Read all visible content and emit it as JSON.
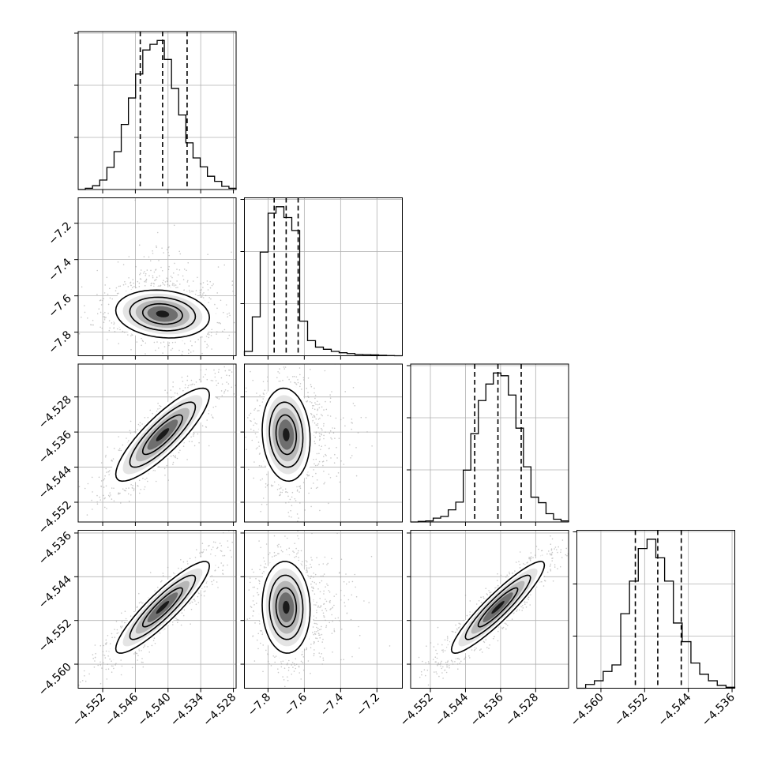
{
  "chart_data": {
    "type": "corner",
    "grid": true,
    "n_params": 4,
    "params": [
      {
        "range": [
          -4.5565,
          -4.5275
        ],
        "ticks": [
          -4.552,
          -4.546,
          -4.54,
          -4.534,
          -4.528
        ],
        "tick_labels": [
          "−4.552",
          "−4.546",
          "−4.540",
          "−4.534",
          "−4.528"
        ],
        "median": -4.541,
        "quantiles": [
          -4.5451,
          -4.541,
          -4.5365
        ],
        "histogram": [
          0,
          0.2,
          0.6,
          1.5,
          3.5,
          6.0,
          10.3,
          14.5,
          18.3,
          22.1,
          23.0,
          23.6,
          20.6,
          16.0,
          11.8,
          7.4,
          5.0,
          3.6,
          2.1,
          1.3,
          0.5,
          0.2
        ],
        "axis_tick_labels_hidden": true
      },
      {
        "range": [
          -7.93,
          -7.06
        ],
        "ticks": [
          -7.8,
          -7.6,
          -7.4,
          -7.2
        ],
        "tick_labels": [
          "−7.8",
          "−7.6",
          "−7.4",
          "−7.2"
        ],
        "median": -7.7,
        "quantiles": [
          -7.766,
          -7.7,
          -7.634
        ],
        "histogram": [
          1.0,
          9.0,
          24.0,
          33.0,
          34.5,
          32.0,
          29.0,
          8.0,
          3.5,
          2.0,
          1.5,
          1.0,
          0.7,
          0.5,
          0.3,
          0.25,
          0.2,
          0.1,
          0.05,
          0
        ]
      },
      {
        "range": [
          -4.5565,
          -4.5205
        ],
        "ticks": [
          -4.552,
          -4.544,
          -4.536,
          -4.528
        ],
        "tick_labels": [
          "−4.552",
          "−4.544",
          "−4.536",
          "−4.528"
        ],
        "median": -4.5366,
        "quantiles": [
          -4.5419,
          -4.5366,
          -4.5313
        ],
        "histogram": [
          0,
          0.1,
          0.2,
          0.7,
          1.0,
          2.2,
          3.6,
          9.4,
          16.0,
          22.0,
          25.0,
          27.0,
          26.5,
          23.0,
          17.0,
          10.0,
          4.5,
          3.5,
          1.5,
          0.5,
          0.2
        ]
      },
      {
        "range": [
          -4.5644,
          -4.5355
        ],
        "ticks": [
          -4.56,
          -4.552,
          -4.544,
          -4.536
        ],
        "tick_labels": [
          "−4.560",
          "−4.552",
          "−4.544",
          "−4.536"
        ],
        "median": -4.5496,
        "quantiles": [
          -4.5537,
          -4.5496,
          -4.5453
        ],
        "histogram": [
          0,
          0.4,
          0.8,
          1.8,
          2.5,
          8.0,
          11.5,
          15.0,
          16.0,
          14.0,
          11.5,
          7.0,
          5.0,
          2.7,
          1.5,
          0.8,
          0.3,
          0.1
        ]
      }
    ],
    "contour_levels": 3
  }
}
